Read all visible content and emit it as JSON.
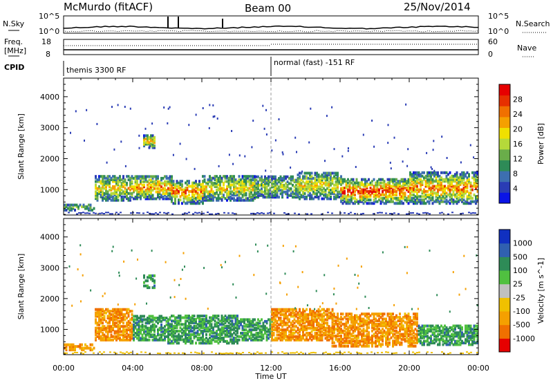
{
  "header": {
    "station": "McMurdo (fitACF)",
    "beam": "Beam 00",
    "date": "25/Nov/2014"
  },
  "top_panels": {
    "nsky_label": "N.Sky",
    "nsearch_label": "N.Search",
    "nsky_top_tick": "10^5",
    "nsky_bottom_tick": "10^0",
    "nsearch_top_tick": "10^5",
    "nsearch_bottom_tick": "10^0",
    "freq_label_1": "Freq.",
    "freq_label_2": "[MHz]",
    "freq_top_tick": "18",
    "freq_bottom_tick": "8",
    "nave_label": "Nave",
    "nave_top_tick": "60",
    "nave_bottom_tick": "0",
    "cpid_label": "CPID",
    "cpid_segments": [
      "themis 3300 RF",
      "normal (fast) -151 RF"
    ]
  },
  "chart_data": [
    {
      "type": "heatmap",
      "name": "power",
      "xlabel": "Time UT",
      "ylabel": "Slant Range [km]",
      "xlim": [
        0,
        24
      ],
      "ylim": [
        180,
        4600
      ],
      "xticks": [
        "00:00",
        "04:00",
        "08:00",
        "12:00",
        "16:00",
        "20:00",
        "00:00"
      ],
      "yticks": [
        1000,
        2000,
        3000,
        4000
      ],
      "colorbar": {
        "label": "Power [dB]",
        "ticks": [
          "4",
          "8",
          "12",
          "16",
          "20",
          "24",
          "28"
        ],
        "colors": [
          "#0a14e6",
          "#2a3cb5",
          "#3d6fb0",
          "#2e8b57",
          "#6aad4a",
          "#b5d93a",
          "#f0e000",
          "#f5a000",
          "#f07000",
          "#e63000",
          "#e60000"
        ]
      },
      "echo_bands": [
        {
          "t0": 0.0,
          "t1": 1.8,
          "r0": 380,
          "r1": 560,
          "intensity": 0.25
        },
        {
          "t0": 1.8,
          "t1": 4.0,
          "r0": 700,
          "r1": 1500,
          "intensity": 0.45
        },
        {
          "t0": 4.0,
          "t1": 6.2,
          "r0": 750,
          "r1": 1500,
          "intensity": 0.6
        },
        {
          "t0": 6.2,
          "t1": 8.0,
          "r0": 600,
          "r1": 1350,
          "intensity": 0.65
        },
        {
          "t0": 8.0,
          "t1": 11.0,
          "r0": 700,
          "r1": 1500,
          "intensity": 0.45
        },
        {
          "t0": 11.0,
          "t1": 13.5,
          "r0": 800,
          "r1": 1500,
          "intensity": 0.3
        },
        {
          "t0": 13.5,
          "t1": 16.0,
          "r0": 750,
          "r1": 1600,
          "intensity": 0.45
        },
        {
          "t0": 16.0,
          "t1": 20.0,
          "r0": 600,
          "r1": 1400,
          "intensity": 0.75
        },
        {
          "t0": 20.0,
          "t1": 24.0,
          "r0": 600,
          "r1": 1600,
          "intensity": 0.6
        },
        {
          "t0": 4.6,
          "t1": 5.2,
          "r0": 2400,
          "r1": 2800,
          "intensity": 0.55
        }
      ]
    },
    {
      "type": "heatmap",
      "name": "velocity",
      "xlabel": "Time UT",
      "ylabel": "Slant Range [km]",
      "xlim": [
        0,
        24
      ],
      "ylim": [
        180,
        4600
      ],
      "xticks": [
        "00:00",
        "04:00",
        "08:00",
        "12:00",
        "16:00",
        "20:00",
        "00:00"
      ],
      "yticks": [
        1000,
        2000,
        3000,
        4000
      ],
      "colorbar": {
        "label": "Velocity [m s^-1]",
        "ticks": [
          "1000",
          "500",
          "100",
          "25",
          "-25",
          "-100",
          "-500",
          "-1000"
        ],
        "colors": [
          "#1030c0",
          "#3060b0",
          "#2e8b57",
          "#50c040",
          "#c0c0c0",
          "#f0c000",
          "#f5a000",
          "#f07000",
          "#e60000"
        ]
      },
      "echo_bands": [
        {
          "t0": 0.0,
          "t1": 1.8,
          "r0": 380,
          "r1": 560,
          "sign": -1
        },
        {
          "t0": 1.8,
          "t1": 4.0,
          "r0": 700,
          "r1": 1700,
          "sign": -1
        },
        {
          "t0": 4.0,
          "t1": 6.0,
          "r0": 700,
          "r1": 1500,
          "sign": 1
        },
        {
          "t0": 6.0,
          "t1": 10.0,
          "r0": 600,
          "r1": 1500,
          "sign": 1
        },
        {
          "t0": 10.0,
          "t1": 12.0,
          "r0": 700,
          "r1": 1400,
          "sign": 1
        },
        {
          "t0": 12.0,
          "t1": 15.5,
          "r0": 700,
          "r1": 1700,
          "sign": -1
        },
        {
          "t0": 15.5,
          "t1": 20.5,
          "r0": 500,
          "r1": 1600,
          "sign": -1
        },
        {
          "t0": 20.5,
          "t1": 24.0,
          "r0": 550,
          "r1": 1200,
          "sign": 1
        },
        {
          "t0": 4.6,
          "t1": 5.2,
          "r0": 2400,
          "r1": 2800,
          "sign": 1
        }
      ]
    }
  ]
}
